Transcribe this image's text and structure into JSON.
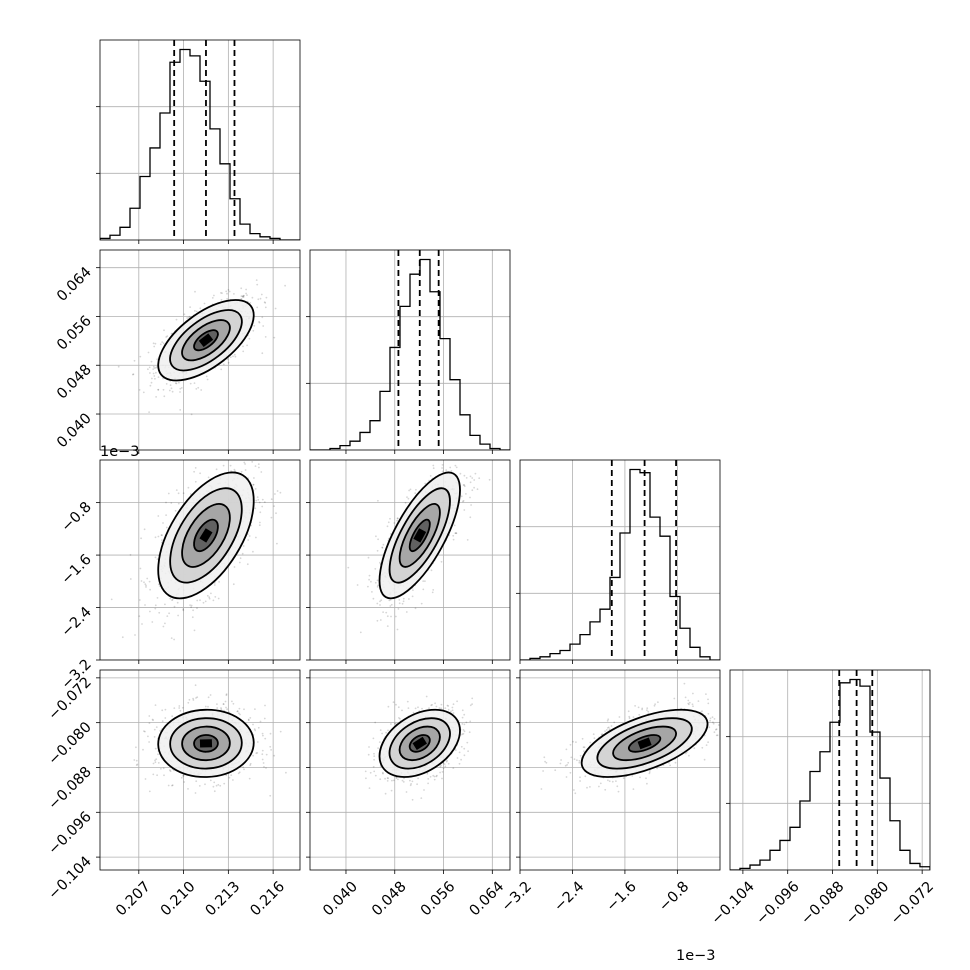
{
  "chart_data": {
    "type": "corner",
    "parameters": [
      {
        "ticks": [
          0.207,
          0.21,
          0.213,
          0.216
        ],
        "tick_labels": [
          "0.207",
          "0.210",
          "0.213",
          "0.216"
        ],
        "range": [
          0.2044,
          0.2178
        ],
        "offset": ""
      },
      {
        "ticks": [
          0.04,
          0.048,
          0.056,
          0.064
        ],
        "tick_labels": [
          "0.040",
          "0.048",
          "0.056",
          "0.064"
        ],
        "range": [
          0.0341,
          0.0669
        ],
        "offset": ""
      },
      {
        "ticks": [
          -3.2,
          -2.4,
          -1.6,
          -0.8
        ],
        "tick_labels": [
          "−3.2",
          "−2.4",
          "−1.6",
          "−0.8"
        ],
        "range": [
          -3.2,
          -0.15
        ],
        "offset": "1e−3"
      },
      {
        "ticks": [
          -0.104,
          -0.096,
          -0.088,
          -0.08,
          -0.072
        ],
        "tick_labels": [
          "−0.104",
          "−0.096",
          "−0.088",
          "−0.080",
          "−0.072"
        ],
        "range": [
          -0.1063,
          -0.0706
        ],
        "offset": ""
      }
    ],
    "histograms": [
      {
        "edges": [
          0.2044,
          0.20507,
          0.20574,
          0.20641,
          0.20708,
          0.20775,
          0.20842,
          0.20909,
          0.20976,
          0.21043,
          0.2111,
          0.21177,
          0.21244,
          0.21311,
          0.21378,
          0.21445,
          0.21512,
          0.21579,
          0.21646,
          0.21713,
          0.2178
        ],
        "counts": [
          0.5,
          1.5,
          4,
          10,
          20,
          29,
          40,
          56,
          60,
          58,
          50,
          35,
          24,
          13,
          5,
          2,
          1,
          0.5,
          0,
          0
        ],
        "quantiles": [
          0.20937,
          0.2115,
          0.21341
        ]
      },
      {
        "edges": [
          0.0341,
          0.03574,
          0.03738,
          0.03902,
          0.04066,
          0.0423,
          0.04394,
          0.04558,
          0.04722,
          0.04886,
          0.0505,
          0.05214,
          0.05378,
          0.05542,
          0.05706,
          0.0587,
          0.06034,
          0.06198,
          0.06362,
          0.06526,
          0.0669
        ],
        "counts": [
          0,
          0,
          0.5,
          1.5,
          3,
          6,
          10,
          20,
          35,
          49,
          60,
          65,
          54,
          38,
          24,
          12,
          5,
          2,
          0.5,
          0
        ],
        "quantiles": [
          0.0486,
          0.0521,
          0.0552
        ]
      },
      {
        "edges": [
          -3.2,
          -3.0475,
          -2.895,
          -2.7425,
          -2.59,
          -2.4375,
          -2.285,
          -2.1325,
          -1.98,
          -1.8275,
          -1.675,
          -1.5225,
          -1.37,
          -1.2175,
          -1.065,
          -0.9125,
          -0.76,
          -0.6075,
          -0.455,
          -0.3025,
          -0.15
        ],
        "counts": [
          0,
          0.5,
          1,
          2,
          3,
          5,
          8,
          12,
          16,
          26,
          40,
          60,
          59,
          45,
          39,
          20,
          10,
          4,
          1,
          0
        ],
        "quantiles": [
          -1.8,
          -1.3,
          -0.82
        ]
      },
      {
        "edges": [
          -0.1063,
          -0.10452,
          -0.10273,
          -0.10095,
          -0.09916,
          -0.09738,
          -0.09559,
          -0.09381,
          -0.09202,
          -0.09024,
          -0.08845,
          -0.08667,
          -0.08488,
          -0.0831,
          -0.08131,
          -0.07953,
          -0.07774,
          -0.07596,
          -0.07417,
          -0.07239,
          -0.0706
        ],
        "counts": [
          0,
          0.5,
          1.5,
          3,
          6,
          9,
          13,
          21,
          30,
          36,
          45,
          57,
          58,
          56,
          42,
          28,
          15,
          6,
          2,
          1
        ],
        "quantiles": [
          -0.0868,
          -0.0837,
          -0.0809
        ]
      }
    ],
    "pairs": [
      {
        "x": 0,
        "y": 1,
        "rho": 0.62
      },
      {
        "x": 0,
        "y": 2,
        "rho": 0.55
      },
      {
        "x": 1,
        "y": 2,
        "rho": 0.72
      },
      {
        "x": 0,
        "y": 3,
        "rho": 0.02
      },
      {
        "x": 1,
        "y": 3,
        "rho": 0.38
      },
      {
        "x": 2,
        "y": 3,
        "rho": 0.58
      }
    ],
    "means": [
      0.2115,
      0.0521,
      -1.3,
      -0.0837
    ],
    "sigmas": [
      0.0016,
      0.0033,
      0.48,
      0.003
    ],
    "contour_levels_sigma": [
      0.5,
      1.0,
      1.5,
      2.0
    ],
    "grid": true
  }
}
